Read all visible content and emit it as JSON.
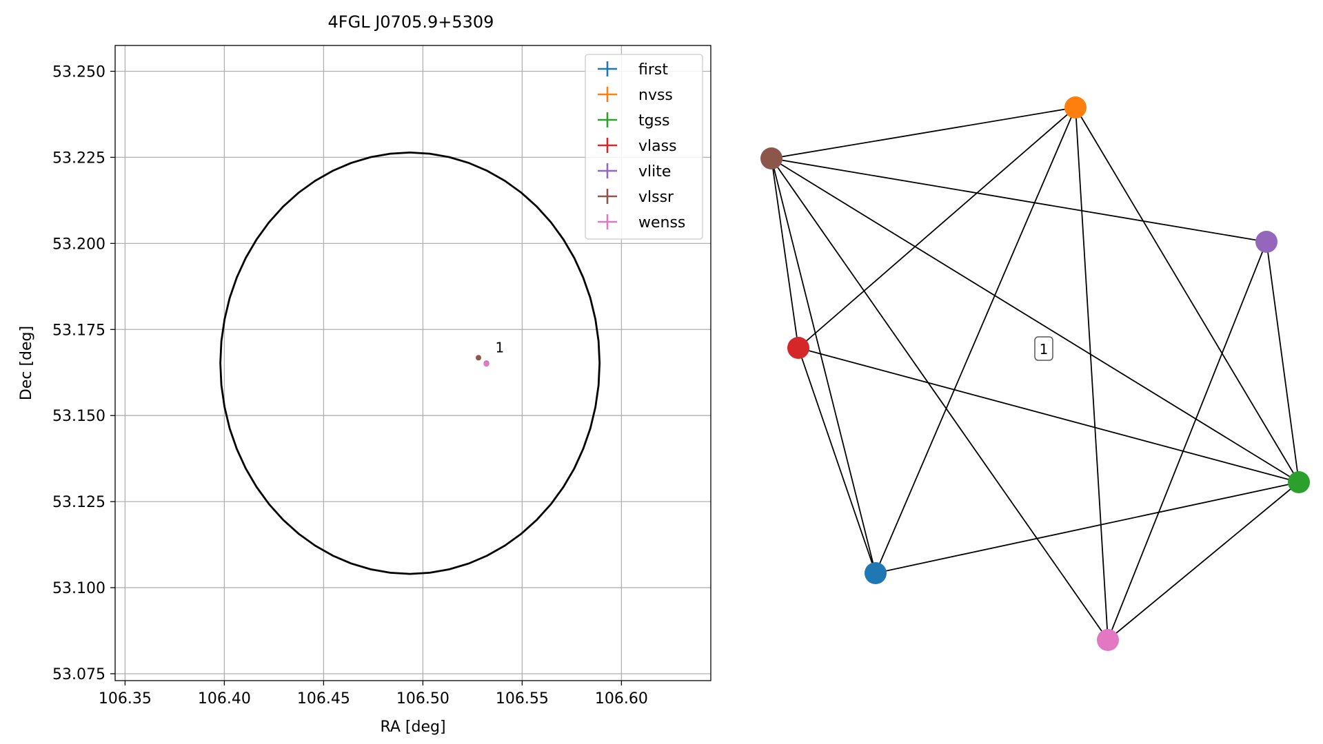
{
  "chart_data": [
    {
      "type": "scatter",
      "title": "4FGL J0705.9+5309",
      "xlabel": "RA [deg]",
      "ylabel": "Dec [deg]",
      "xlim": [
        106.345,
        106.645
      ],
      "ylim": [
        53.073,
        53.2575
      ],
      "grid": true,
      "legend_position": "top-right",
      "x_ticks": [
        "106.35",
        "106.40",
        "106.45",
        "106.50",
        "106.55",
        "106.60"
      ],
      "y_ticks": [
        "53.075",
        "53.100",
        "53.125",
        "53.150",
        "53.175",
        "53.200",
        "53.225",
        "53.250"
      ],
      "ellipse": {
        "center": [
          106.4935,
          53.1652
        ],
        "half_width_ra": 0.0955,
        "half_height_dec": 0.0612,
        "color": "#000000"
      },
      "series": [
        {
          "name": "first",
          "color": "#1f77b4",
          "x": [
            106.532
          ],
          "y": [
            53.1651
          ]
        },
        {
          "name": "nvss",
          "color": "#ff7f0e",
          "x": [
            106.532
          ],
          "y": [
            53.1651
          ]
        },
        {
          "name": "tgss",
          "color": "#2ca02c",
          "x": [
            106.532
          ],
          "y": [
            53.1651
          ]
        },
        {
          "name": "vlass",
          "color": "#d62728",
          "x": [
            106.532
          ],
          "y": [
            53.1651
          ]
        },
        {
          "name": "vlite",
          "color": "#9467bd",
          "x": [
            106.532
          ],
          "y": [
            53.1652
          ]
        },
        {
          "name": "vlssr",
          "color": "#8c564b",
          "x": [
            106.528
          ],
          "y": [
            53.1668
          ]
        },
        {
          "name": "wenss",
          "color": "#e377c2",
          "x": [
            106.532
          ],
          "y": [
            53.165
          ]
        }
      ],
      "annotations": [
        {
          "text": "1",
          "x": 106.533,
          "y": 53.1692
        }
      ]
    },
    {
      "type": "network",
      "cluster_label": "1",
      "nodes": [
        {
          "name": "first",
          "color": "#1f77b4"
        },
        {
          "name": "nvss",
          "color": "#ff7f0e"
        },
        {
          "name": "tgss",
          "color": "#2ca02c"
        },
        {
          "name": "vlass",
          "color": "#d62728"
        },
        {
          "name": "vlite",
          "color": "#9467bd"
        },
        {
          "name": "vlssr",
          "color": "#8c564b"
        },
        {
          "name": "wenss",
          "color": "#e377c2"
        }
      ],
      "edges": [
        [
          "vlssr",
          "nvss"
        ],
        [
          "vlssr",
          "vlite"
        ],
        [
          "vlssr",
          "tgss"
        ],
        [
          "vlssr",
          "vlass"
        ],
        [
          "vlssr",
          "first"
        ],
        [
          "vlssr",
          "wenss"
        ],
        [
          "nvss",
          "vlass"
        ],
        [
          "nvss",
          "first"
        ],
        [
          "nvss",
          "wenss"
        ],
        [
          "nvss",
          "tgss"
        ],
        [
          "vlite",
          "tgss"
        ],
        [
          "vlite",
          "wenss"
        ],
        [
          "vlass",
          "first"
        ],
        [
          "vlass",
          "tgss"
        ],
        [
          "first",
          "tgss"
        ],
        [
          "wenss",
          "tgss"
        ]
      ]
    }
  ]
}
